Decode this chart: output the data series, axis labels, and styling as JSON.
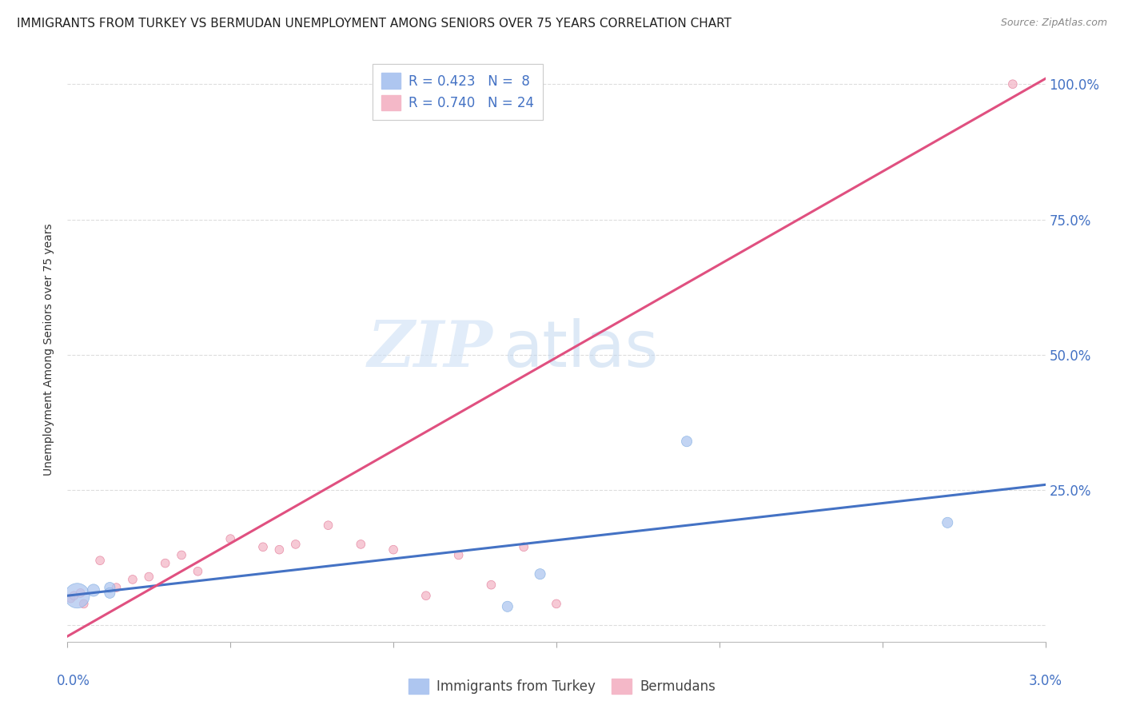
{
  "title": "IMMIGRANTS FROM TURKEY VS BERMUDAN UNEMPLOYMENT AMONG SENIORS OVER 75 YEARS CORRELATION CHART",
  "source": "Source: ZipAtlas.com",
  "ylabel": "Unemployment Among Seniors over 75 years",
  "right_ytick_vals": [
    0.0,
    25.0,
    50.0,
    75.0,
    100.0
  ],
  "right_ytick_labels": [
    "",
    "25.0%",
    "50.0%",
    "75.0%",
    "100.0%"
  ],
  "xlim": [
    0.0,
    0.03
  ],
  "ylim": [
    -3.0,
    105.0
  ],
  "legend_entries": [
    {
      "label": "R = 0.423   N =  8",
      "color": "#aec6f0"
    },
    {
      "label": "R = 0.740   N = 24",
      "color": "#f4b8c8"
    }
  ],
  "blue_scatter": {
    "x": [
      0.0003,
      0.0008,
      0.0013,
      0.0013,
      0.0145,
      0.0135,
      0.019,
      0.027
    ],
    "y": [
      5.5,
      6.5,
      7.0,
      6.0,
      9.5,
      3.5,
      34.0,
      19.0
    ],
    "sizes": [
      500,
      120,
      90,
      90,
      90,
      90,
      90,
      90
    ],
    "color": "#aec6f0",
    "edgecolor": "#7aaae0",
    "alpha": 0.75
  },
  "pink_scatter": {
    "x": [
      0.0001,
      0.0002,
      0.0004,
      0.0005,
      0.001,
      0.0015,
      0.002,
      0.0025,
      0.003,
      0.0035,
      0.004,
      0.005,
      0.006,
      0.0065,
      0.007,
      0.008,
      0.009,
      0.01,
      0.011,
      0.012,
      0.013,
      0.014,
      0.015,
      0.029
    ],
    "y": [
      5.0,
      5.5,
      6.0,
      4.0,
      12.0,
      7.0,
      8.5,
      9.0,
      11.5,
      13.0,
      10.0,
      16.0,
      14.5,
      14.0,
      15.0,
      18.5,
      15.0,
      14.0,
      5.5,
      13.0,
      7.5,
      14.5,
      4.0,
      100.0
    ],
    "sizes": [
      60,
      60,
      60,
      60,
      60,
      60,
      60,
      60,
      60,
      60,
      60,
      60,
      60,
      60,
      60,
      60,
      60,
      60,
      60,
      60,
      60,
      60,
      60,
      60
    ],
    "color": "#f4b8c8",
    "edgecolor": "#e07090",
    "alpha": 0.75
  },
  "blue_line": {
    "x": [
      0.0,
      0.03
    ],
    "y": [
      5.5,
      26.0
    ],
    "color": "#4472c4",
    "linewidth": 2.2
  },
  "pink_line": {
    "x": [
      0.0,
      0.03
    ],
    "y": [
      -2.0,
      101.0
    ],
    "color": "#e05080",
    "linewidth": 2.2
  },
  "watermark_zip": "ZIP",
  "watermark_atlas": "atlas",
  "background_color": "#ffffff",
  "grid_color": "#dddddd",
  "title_fontsize": 11,
  "axis_label_fontsize": 10,
  "tick_fontsize": 11
}
